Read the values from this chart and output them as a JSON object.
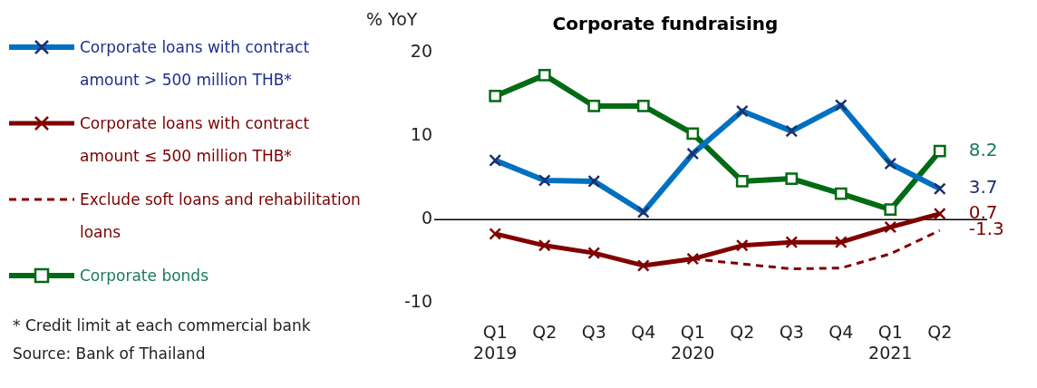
{
  "chart_data": {
    "type": "line",
    "title": "Corporate fundraising",
    "ylabel": "% YoY",
    "categories": [
      "Q1\n2019",
      "Q2",
      "Q3",
      "Q4",
      "Q1\n2020",
      "Q2",
      "Q3",
      "Q4",
      "Q1\n2021",
      "Q2"
    ],
    "series": [
      {
        "name": "Corporate loans with contract amount > 500 million THB*",
        "color": "#0070c0",
        "marker": "cross",
        "line_style": "solid",
        "values": [
          7.1,
          4.7,
          4.6,
          0.9,
          7.9,
          13.0,
          10.6,
          13.7,
          6.7,
          3.7
        ],
        "value_labels": [
          null,
          null,
          null,
          null,
          null,
          null,
          null,
          null,
          null,
          "3.7"
        ]
      },
      {
        "name": "Corporate loans with contract amount  ≤ 500 million THB*",
        "color": "#800000",
        "marker": "cross",
        "line_style": "solid",
        "values": [
          -1.7,
          -3.1,
          -4.0,
          -5.5,
          -4.7,
          -3.1,
          -2.7,
          -2.7,
          -0.9,
          0.7
        ],
        "value_labels": [
          null,
          null,
          null,
          null,
          null,
          null,
          null,
          null,
          null,
          "0.7"
        ]
      },
      {
        "name": "Exclude soft loans and rehabilitation loans",
        "color": "#800000",
        "marker": "none",
        "line_style": "dashed",
        "values": [
          null,
          null,
          null,
          null,
          -4.7,
          -5.3,
          -5.9,
          -5.8,
          -4.1,
          -1.3
        ],
        "value_labels": [
          null,
          null,
          null,
          null,
          null,
          null,
          null,
          null,
          null,
          "-1.3"
        ]
      },
      {
        "name": "Corporate bonds",
        "color": "#006b14",
        "marker": "square",
        "line_style": "solid",
        "values": [
          14.8,
          17.3,
          13.6,
          13.6,
          10.3,
          4.6,
          4.9,
          3.1,
          1.2,
          8.2
        ],
        "value_labels": [
          null,
          null,
          null,
          null,
          null,
          null,
          null,
          null,
          null,
          "8.2"
        ]
      }
    ],
    "ylim": [
      -10,
      20
    ],
    "yticks": [
      -10,
      0,
      10,
      20
    ],
    "grid": false,
    "legend": "left",
    "ref_lines": [
      {
        "axis": "y",
        "value": 0,
        "color": "#000000"
      }
    ],
    "annotations": [
      "* Credit limit at each commercial bank",
      "Source: Bank of Thailand"
    ]
  }
}
